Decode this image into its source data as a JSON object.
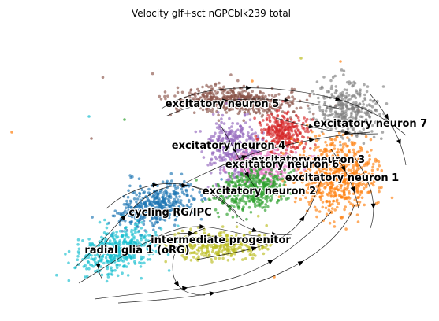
{
  "chart_data": {
    "type": "scatter",
    "title": "Velocity glf+sct nGPCblk239 total",
    "xlabel": "",
    "ylabel": "",
    "grid": false,
    "legend": "on data",
    "clusters": [
      {
        "name": "excitatory neuron 5",
        "color": "#8c564b"
      },
      {
        "name": "excitatory neuron 7",
        "color": "#7f7f7f"
      },
      {
        "name": "excitatory neuron 4",
        "color": "#9467bd"
      },
      {
        "name": "excitatory neuron 3",
        "color": "#d62728"
      },
      {
        "name": "excitatory neuron 6",
        "color": "#e377c2"
      },
      {
        "name": "excitatory neuron 1",
        "color": "#ff7f0e"
      },
      {
        "name": "excitatory neuron 2",
        "color": "#2ca02c"
      },
      {
        "name": "cycling RG/IPC",
        "color": "#1f77b4"
      },
      {
        "name": "intermediate progenitor",
        "color": "#bcbd22"
      },
      {
        "name": "radial glia 1 (oRG)",
        "color": "#17becf"
      }
    ]
  }
}
